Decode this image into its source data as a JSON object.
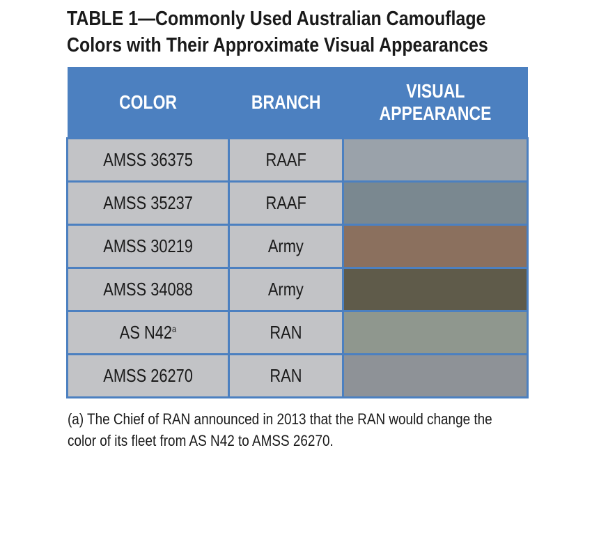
{
  "title": {
    "line1": "TABLE 1—Commonly Used Australian Camouflage",
    "line2": "Colors with Their Approximate Visual Appearances"
  },
  "table": {
    "headers": {
      "color": "COLOR",
      "branch": "BRANCH",
      "visual_line1": "VISUAL",
      "visual_line2": "APPEARANCE"
    },
    "rows": [
      {
        "color": "AMSS 36375",
        "superscript": "",
        "branch": "RAAF",
        "swatch": "#9aa2aa"
      },
      {
        "color": "AMSS 35237",
        "superscript": "",
        "branch": "RAAF",
        "swatch": "#7a8890"
      },
      {
        "color": "AMSS 30219",
        "superscript": "",
        "branch": "Army",
        "swatch": "#8b705e"
      },
      {
        "color": "AMSS 34088",
        "superscript": "",
        "branch": "Army",
        "swatch": "#5f5b4a"
      },
      {
        "color": "AS N42",
        "superscript": "a",
        "branch": "RAN",
        "swatch": "#8f978e"
      },
      {
        "color": "AMSS 26270",
        "superscript": "",
        "branch": "RAN",
        "swatch": "#8e9297"
      }
    ]
  },
  "footnote": {
    "line1": "(a) The Chief of RAN announced in 2013 that the RAN would change the",
    "line2": "color of its fleet from AS N42 to AMSS 26270."
  },
  "colors": {
    "header_background": "#4c80c0",
    "cell_background": "#c2c3c6",
    "header_text": "#ffffff"
  }
}
